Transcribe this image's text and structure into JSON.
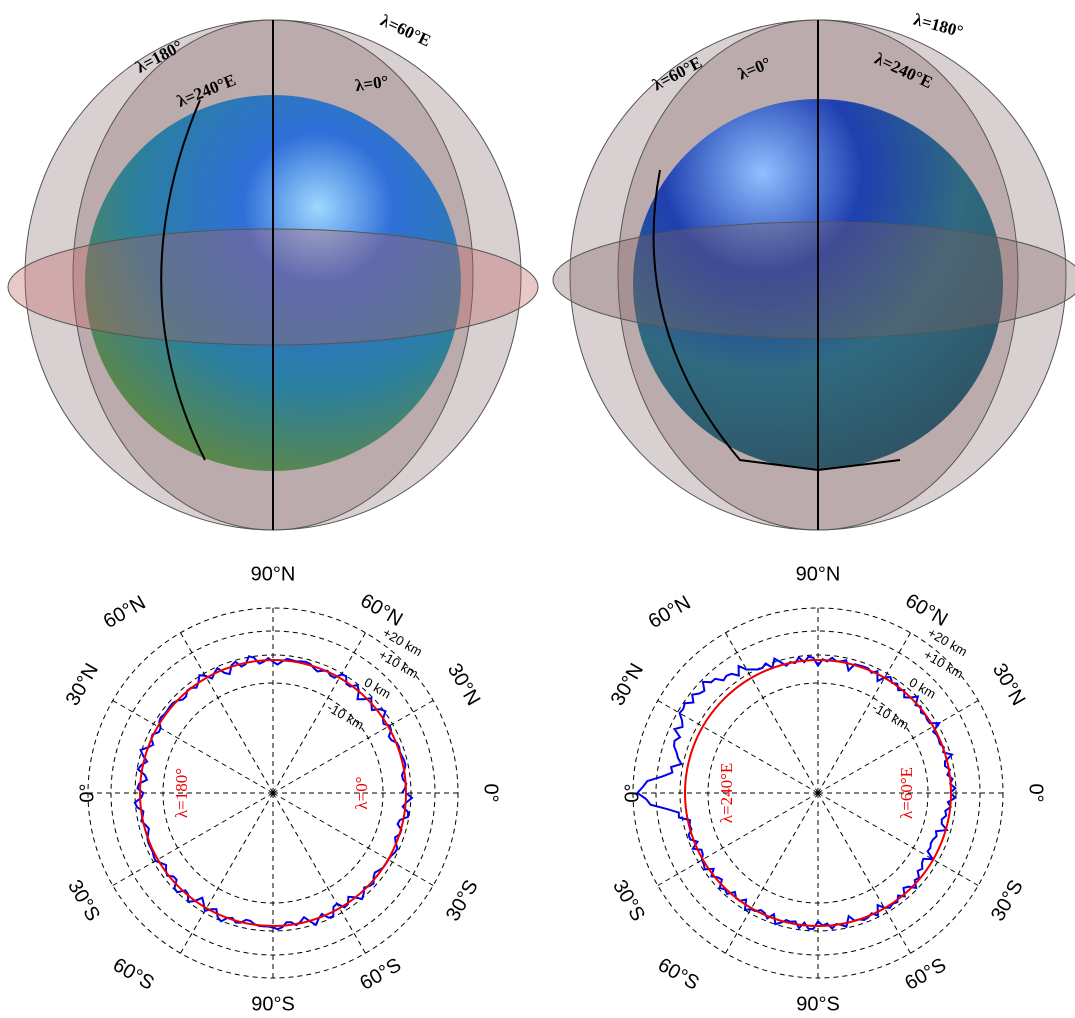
{
  "top_left": {
    "labels": [
      "λ=180°",
      "λ=240°E",
      "λ=60°E",
      "λ=0°"
    ]
  },
  "top_right": {
    "labels": [
      "λ=60°E",
      "λ=0°",
      "λ=180°",
      "λ=240°E"
    ]
  },
  "bottom_left": {
    "lat_labels": [
      "90°N",
      "60°N",
      "60°N",
      "30°N",
      "30°N",
      "0°",
      "0°",
      "30°S",
      "30°S",
      "60°S",
      "60°S",
      "90°S"
    ],
    "ring_labels": [
      "+20 km",
      "+10 km",
      "0 km",
      "-10 km"
    ],
    "meridian_labels": [
      "λ=180°",
      "λ=0°"
    ]
  },
  "bottom_right": {
    "lat_labels": [
      "90°N",
      "60°N",
      "60°N",
      "30°N",
      "30°N",
      "0°",
      "0°",
      "30°S",
      "30°S",
      "60°S",
      "60°S",
      "90°S"
    ],
    "ring_labels": [
      "+20 km",
      "+10 km",
      "0 km",
      "-10 km"
    ],
    "meridian_labels": [
      "λ=240°E",
      "λ=60°E"
    ]
  }
}
